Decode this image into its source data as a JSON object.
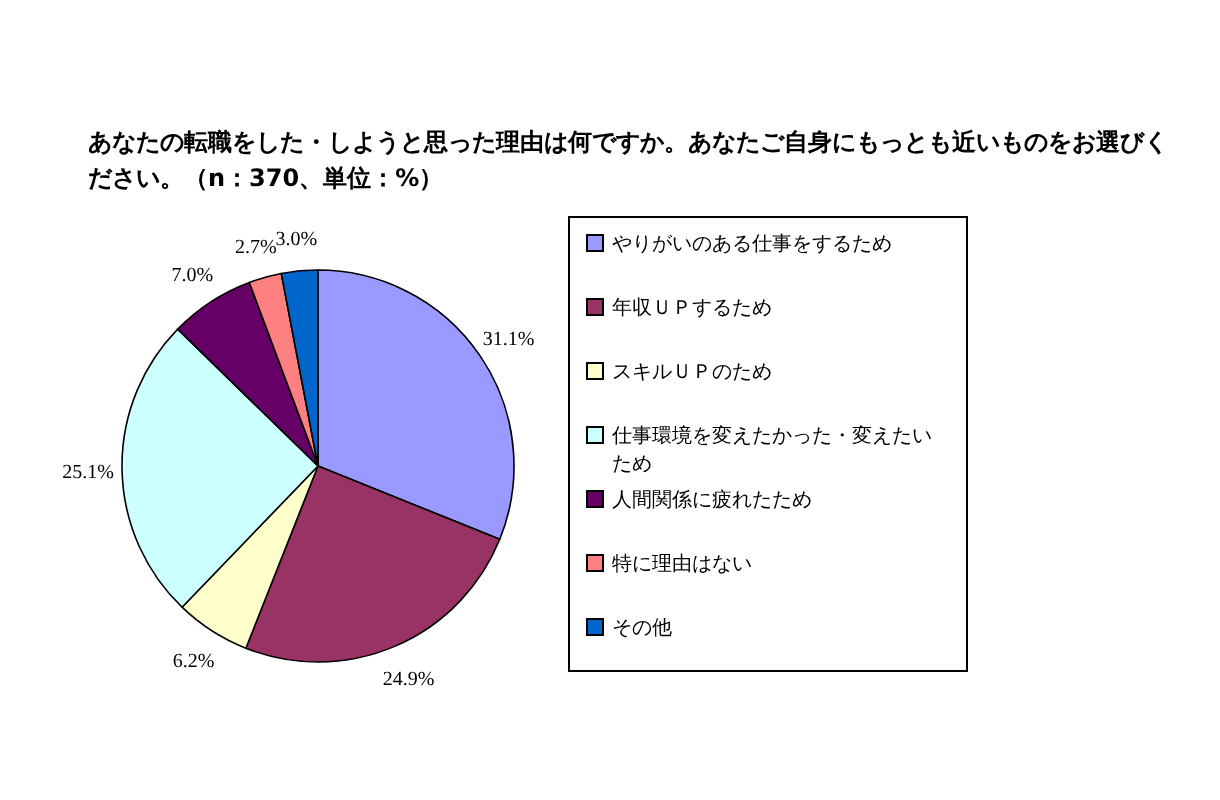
{
  "chart_data": {
    "type": "pie",
    "title": "あなたの転職をした・しようと思った理由は何ですか。あなたご自身にもっとも近いものをお選びください。（n：370、単位：%）",
    "categories": [
      "やりがいのある仕事をするため",
      "年収ＵＰするため",
      "スキルＵＰのため",
      "仕事環境を変えたかった・変えたいため",
      "人間関係に疲れたため",
      "特に理由はない",
      "その他"
    ],
    "values": [
      31.1,
      24.9,
      6.2,
      25.1,
      7.0,
      2.7,
      3.0
    ],
    "colors": [
      "#9999ff",
      "#993366",
      "#ffffcc",
      "#ccffff",
      "#660066",
      "#ff8080",
      "#0066cc"
    ],
    "value_labels": [
      "31.1%",
      "24.9%",
      "6.2%",
      "25.1%",
      "7.0%",
      "2.7%",
      "3.0%"
    ],
    "legend": "right"
  }
}
